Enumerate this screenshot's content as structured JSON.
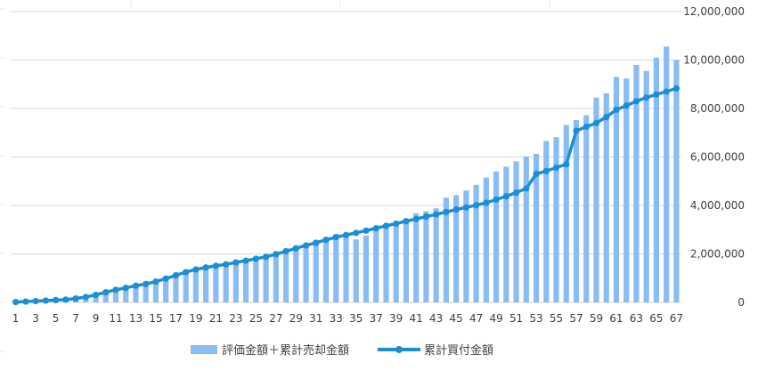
{
  "chart_data": {
    "type": "bar",
    "x": [
      1,
      2,
      3,
      4,
      5,
      6,
      7,
      8,
      9,
      10,
      11,
      12,
      13,
      14,
      15,
      16,
      17,
      18,
      19,
      20,
      21,
      22,
      23,
      24,
      25,
      26,
      27,
      28,
      29,
      30,
      31,
      32,
      33,
      34,
      35,
      36,
      37,
      38,
      39,
      40,
      41,
      42,
      43,
      44,
      45,
      46,
      47,
      48,
      49,
      50,
      51,
      52,
      53,
      54,
      55,
      56,
      57,
      58,
      59,
      60,
      61,
      62,
      63,
      64,
      65,
      66,
      67
    ],
    "x_tick_labels": [
      "1",
      "3",
      "5",
      "7",
      "9",
      "11",
      "13",
      "15",
      "17",
      "19",
      "21",
      "23",
      "25",
      "27",
      "29",
      "31",
      "33",
      "35",
      "37",
      "39",
      "41",
      "43",
      "45",
      "47",
      "49",
      "51",
      "53",
      "55",
      "57",
      "59",
      "61",
      "63",
      "65",
      "67"
    ],
    "ylim": [
      0,
      12000000
    ],
    "y_tick_labels": [
      "0",
      "2,000,000",
      "4,000,000",
      "6,000,000",
      "8,000,000",
      "10,000,000",
      "12,000,000"
    ],
    "y_tick_values": [
      0,
      2000000,
      4000000,
      6000000,
      8000000,
      10000000,
      12000000
    ],
    "y_axis_side": "right",
    "grid": true,
    "legend_position": "bottom",
    "series": [
      {
        "name": "評価金額＋累計売却金額",
        "kind": "bar",
        "color": "#8ABCF4",
        "values": [
          15000,
          25000,
          45000,
          70000,
          90000,
          110000,
          150000,
          210000,
          280000,
          380000,
          480000,
          570000,
          660000,
          720000,
          820000,
          950000,
          1070000,
          1160000,
          1270000,
          1360000,
          1430000,
          1530000,
          1600000,
          1680000,
          1780000,
          1920000,
          2070000,
          2220000,
          2320000,
          2420000,
          2560000,
          2700000,
          2820000,
          2780000,
          2600000,
          2760000,
          3060000,
          3200000,
          3300000,
          3460000,
          3680000,
          3760000,
          3880000,
          4320000,
          4420000,
          4620000,
          4850000,
          5150000,
          5400000,
          5600000,
          5820000,
          6020000,
          6130000,
          6660000,
          6820000,
          7320000,
          7520000,
          7720000,
          8450000,
          8630000,
          9300000,
          9240000,
          9800000,
          9550000,
          10100000,
          10560000,
          10000000
        ],
        "values_end": [
          10560000,
          10950000
        ]
      },
      {
        "name": "累計買付金額",
        "kind": "line",
        "color": "#1B8FD6",
        "values": [
          15000,
          35000,
          55000,
          75000,
          95000,
          115000,
          160000,
          220000,
          310000,
          420000,
          520000,
          600000,
          690000,
          760000,
          860000,
          980000,
          1120000,
          1250000,
          1360000,
          1440000,
          1510000,
          1570000,
          1650000,
          1720000,
          1800000,
          1880000,
          1990000,
          2110000,
          2230000,
          2350000,
          2460000,
          2580000,
          2690000,
          2780000,
          2870000,
          2960000,
          3060000,
          3160000,
          3250000,
          3350000,
          3440000,
          3540000,
          3630000,
          3730000,
          3830000,
          3920000,
          4010000,
          4110000,
          4240000,
          4380000,
          4530000,
          4700000,
          5300000,
          5420000,
          5560000,
          5700000,
          7080000,
          7250000,
          7400000,
          7650000,
          7950000,
          8120000,
          8300000,
          8450000,
          8580000,
          8700000,
          8830000
        ]
      }
    ]
  }
}
